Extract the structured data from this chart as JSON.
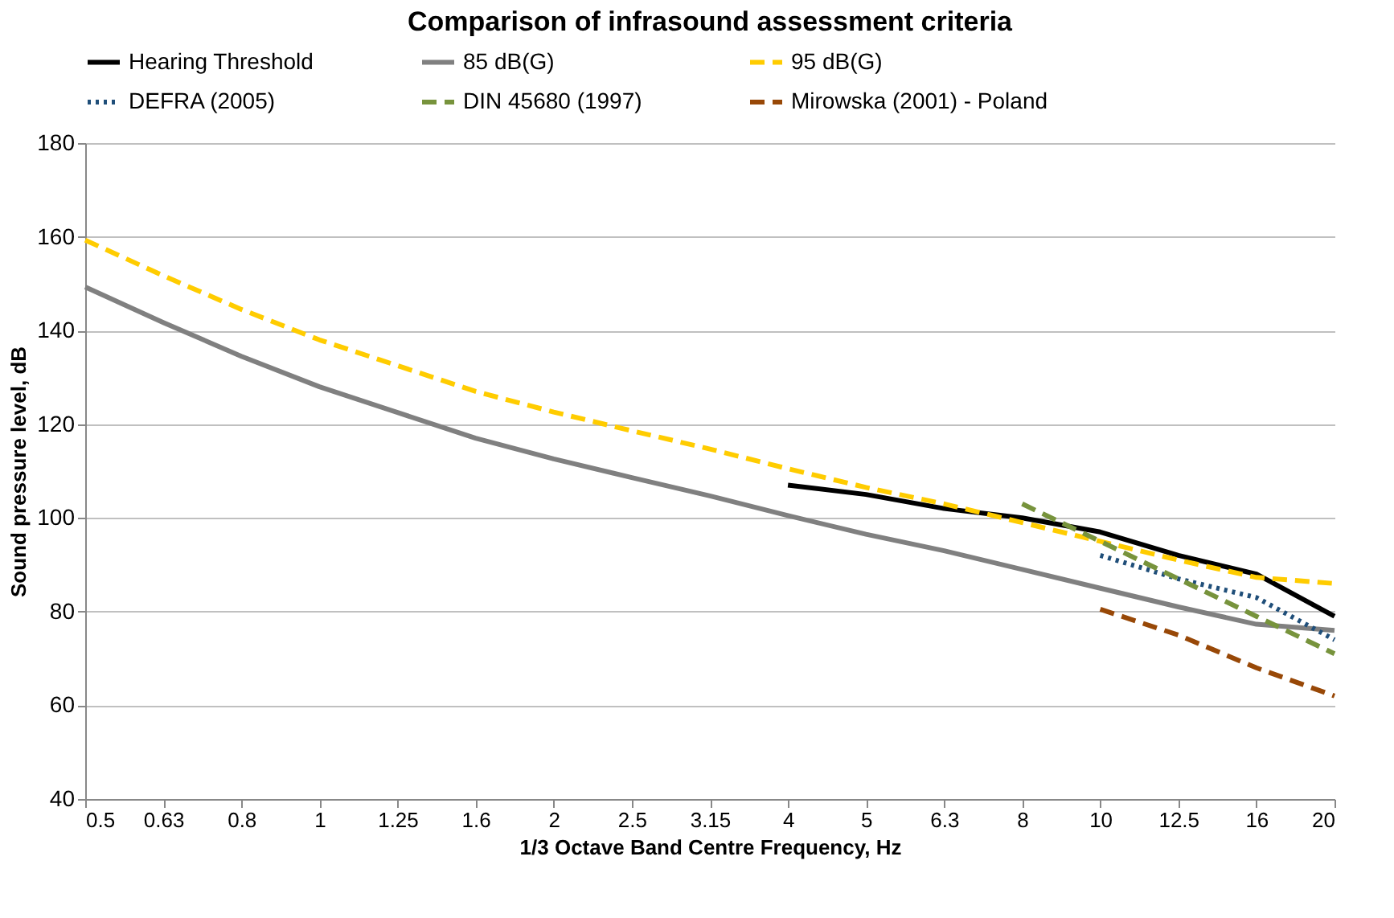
{
  "chart_data": {
    "type": "line",
    "title": "Comparison of infrasound assessment criteria",
    "xlabel": "1/3 Octave Band Centre Frequency, Hz",
    "ylabel": "Sound pressure level, dB",
    "categories": [
      "0.5",
      "0.63",
      "0.8",
      "1",
      "1.25",
      "1.6",
      "2",
      "2.5",
      "3.15",
      "4",
      "5",
      "6.3",
      "8",
      "10",
      "12.5",
      "16",
      "20"
    ],
    "series": [
      {
        "name": "Hearing Threshold",
        "color": "#000000",
        "line_style": "solid",
        "values": [
          null,
          null,
          null,
          null,
          null,
          null,
          null,
          null,
          null,
          107,
          105,
          102,
          100,
          97,
          92,
          88,
          79
        ]
      },
      {
        "name": "85 dB(G)",
        "color": "#808080",
        "line_style": "solid",
        "values": [
          149.3,
          141.7,
          134.5,
          128,
          122.5,
          117,
          112.6,
          108.6,
          104.7,
          100.5,
          96.5,
          93,
          89,
          85,
          81,
          77.3,
          76
        ]
      },
      {
        "name": "95 dB(G)",
        "color": "#ffcc00",
        "line_style": "dashed",
        "values": [
          159.3,
          151.7,
          144.5,
          138,
          132.5,
          127,
          122.6,
          118.6,
          114.7,
          110.5,
          106.5,
          103,
          99,
          95,
          91,
          87.3,
          86
        ]
      },
      {
        "name": "DEFRA (2005)",
        "color": "#1f4e79",
        "line_style": "dotted",
        "values": [
          null,
          null,
          null,
          null,
          null,
          null,
          null,
          null,
          null,
          null,
          null,
          null,
          null,
          92,
          87,
          83,
          74
        ]
      },
      {
        "name": "DIN 45680 (1997)",
        "color": "#77933c",
        "line_style": "dashed",
        "values": [
          null,
          null,
          null,
          null,
          null,
          null,
          null,
          null,
          null,
          null,
          null,
          null,
          103,
          95,
          87,
          79,
          71
        ]
      },
      {
        "name": "Mirowska (2001) - Poland",
        "color": "#984807",
        "line_style": "dashed",
        "values": [
          null,
          null,
          null,
          null,
          null,
          null,
          null,
          null,
          null,
          null,
          null,
          null,
          null,
          80.5,
          75,
          68,
          62
        ]
      }
    ],
    "ylim": [
      40,
      180
    ],
    "yticks": [
      40,
      60,
      80,
      100,
      120,
      140,
      160,
      180
    ],
    "grid": "y",
    "legend": "top"
  }
}
